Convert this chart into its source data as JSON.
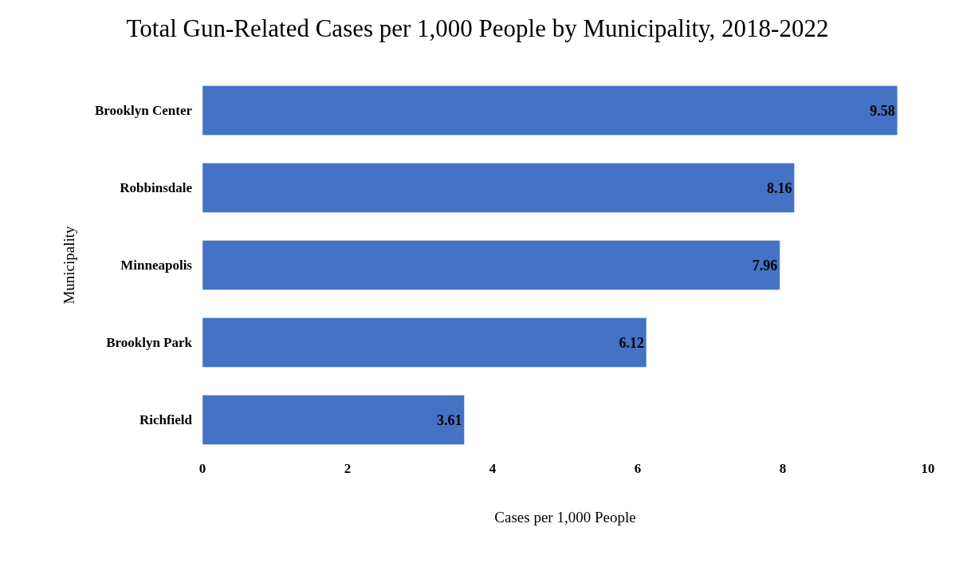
{
  "chart_data": {
    "type": "bar",
    "orientation": "horizontal",
    "title": "Total Gun-Related Cases per 1,000 People by Municipality, 2018-2022",
    "xlabel": "Cases per 1,000 People",
    "ylabel": "Municipality",
    "categories": [
      "Brooklyn Center",
      "Robbinsdale",
      "Minneapolis",
      "Brooklyn Park",
      "Richfield"
    ],
    "values": [
      9.58,
      8.16,
      7.96,
      6.12,
      3.61
    ],
    "color": "#4472c4",
    "xlim": [
      0,
      10
    ],
    "xticks": [
      0,
      2,
      4,
      6,
      8,
      10
    ],
    "data_labels": true
  }
}
